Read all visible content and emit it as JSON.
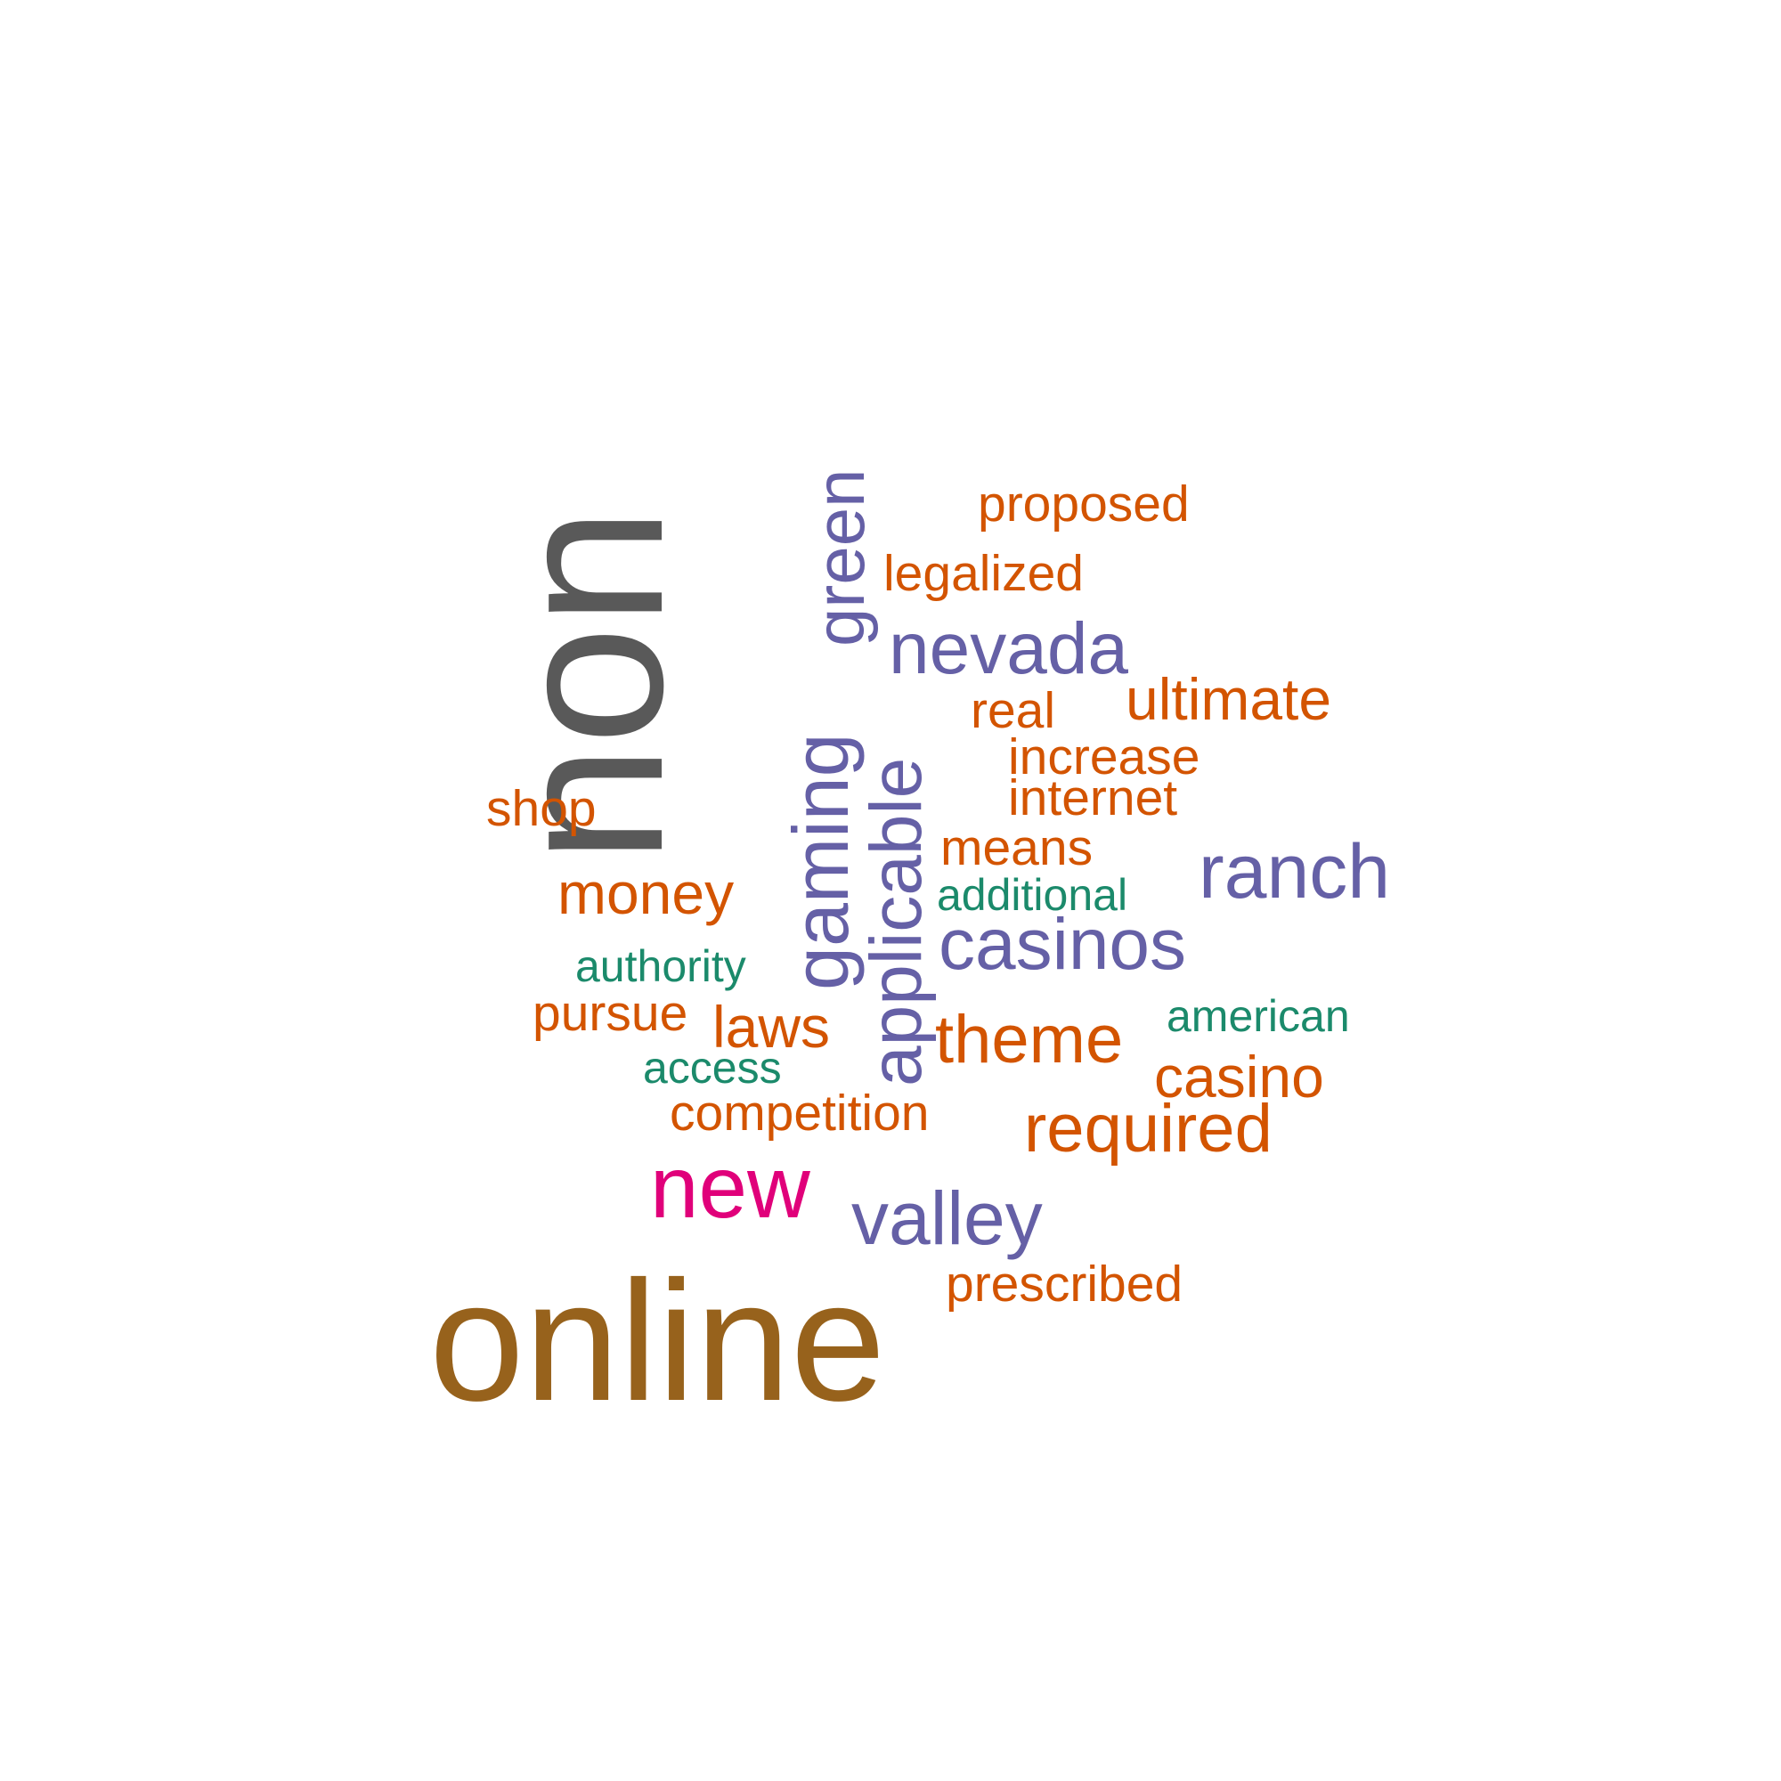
{
  "colors": {
    "orange": "#d95f02",
    "purple": "#7570b3",
    "green": "#1b9e77",
    "magenta": "#e7298a",
    "gray": "#666666",
    "brown": "#a6761d"
  },
  "words": {
    "non": "non",
    "online": "online",
    "new": "new",
    "green": "green",
    "gaming": "gaming",
    "applicable": "applicable",
    "nevada": "nevada",
    "casinos": "casinos",
    "ranch": "ranch",
    "valley": "valley",
    "proposed": "proposed",
    "legalized": "legalized",
    "ultimate": "ultimate",
    "real": "real",
    "increase": "increase",
    "internet": "internet",
    "means": "means",
    "shop": "shop",
    "money": "money",
    "pursue": "pursue",
    "laws": "laws",
    "theme": "theme",
    "casino": "casino",
    "competition": "competition",
    "required": "required",
    "prescribed": "prescribed",
    "additional": "additional",
    "authority": "authority",
    "american": "american",
    "access": "access"
  }
}
